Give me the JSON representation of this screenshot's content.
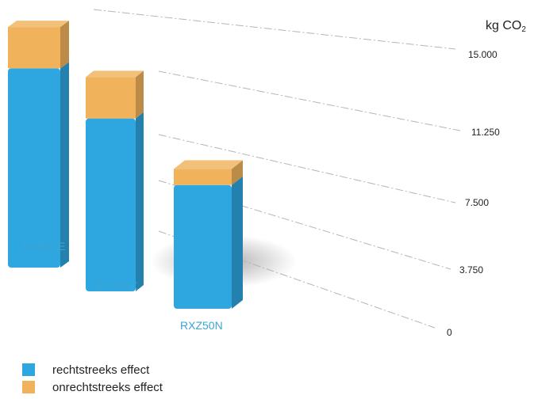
{
  "colors": {
    "rechtstreeks": "#2ea6df",
    "onrechtstreeks": "#f0b25b",
    "category_label": "#3aa6d6",
    "gridline": "#b5b5b5",
    "tick_text": "#222222"
  },
  "chart_data": {
    "type": "bar",
    "stacked": true,
    "style": "3d-perspective",
    "unit": "kg CO2",
    "unit_parts": {
      "main": "kg CO",
      "sub": "2"
    },
    "categories": [
      "RXR50E",
      "RXS50K",
      "RXZ50N"
    ],
    "series": [
      {
        "name": "rechtstreeks effect",
        "color": "#2ea6df",
        "values": [
          11760,
          10650,
          7700
        ]
      },
      {
        "name": "onrechtstreeks effect",
        "color": "#f0b25b",
        "values": [
          2440,
          2550,
          1000
        ]
      }
    ],
    "y_ticks": [
      "0",
      "3.750",
      "7.500",
      "11.250",
      "15.000"
    ],
    "y_tick_values": [
      0,
      3750,
      7500,
      11250,
      15000
    ],
    "ylim": [
      0,
      15000
    ],
    "grid": true,
    "legend_position": "bottom-left"
  },
  "legend": [
    {
      "label": "rechtstreeks effect",
      "color": "#2ea6df"
    },
    {
      "label": "onrechtstreeks effect",
      "color": "#f0b25b"
    }
  ]
}
